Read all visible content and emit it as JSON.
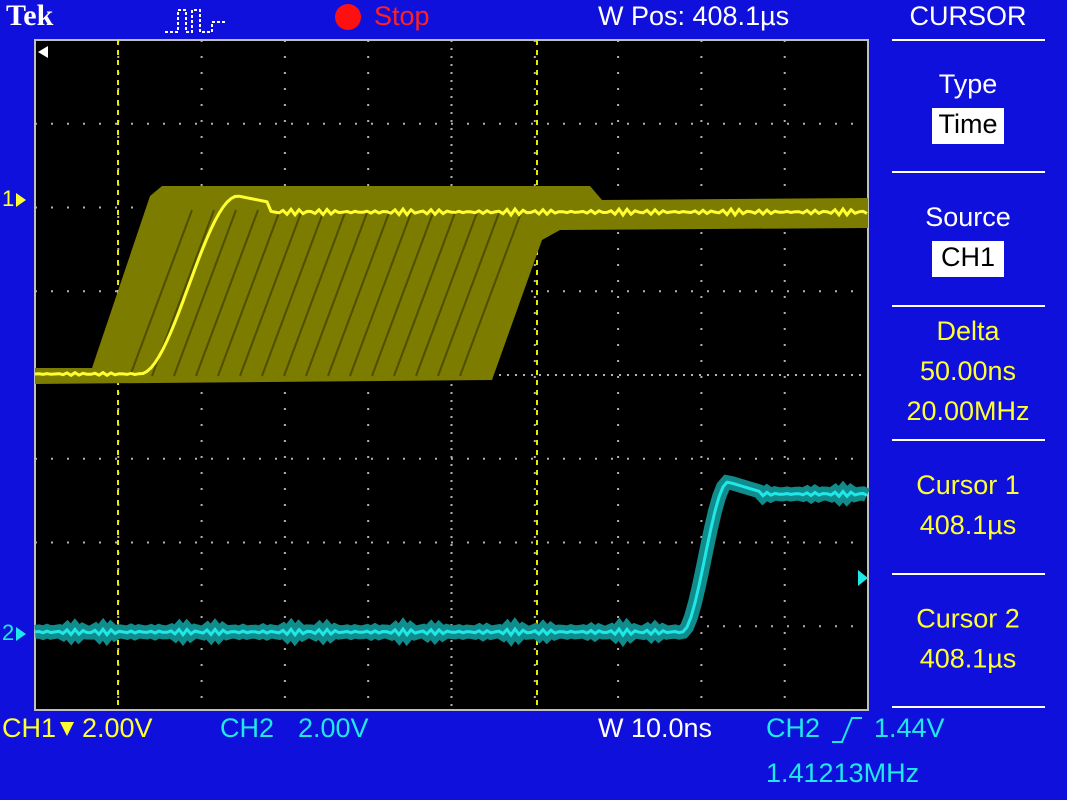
{
  "header": {
    "brand": "Tek",
    "status": "Stop",
    "window_position": "W Pos: 408.1µs"
  },
  "menu": {
    "title": "CURSOR",
    "items": [
      {
        "label": "Type",
        "values": [
          "Time"
        ]
      },
      {
        "label": "Source",
        "values": [
          "CH1"
        ]
      },
      {
        "label": "Delta",
        "values": [
          "50.00ns",
          "20.00MHz"
        ]
      },
      {
        "label": "Cursor 1",
        "values": [
          "408.1µs"
        ]
      },
      {
        "label": "Cursor 2",
        "values": [
          "408.1µs"
        ]
      }
    ]
  },
  "markers": {
    "ch1": "1",
    "ch2": "2"
  },
  "footer": {
    "ch1_label": "CH1",
    "ch1_scale": "2.00V",
    "ch2_label": "CH2",
    "ch2_scale": "2.00V",
    "timebase": "W 10.0ns",
    "trigger_source": "CH2",
    "trigger_level": "1.44V",
    "frequency": "1.41213MHz"
  }
}
